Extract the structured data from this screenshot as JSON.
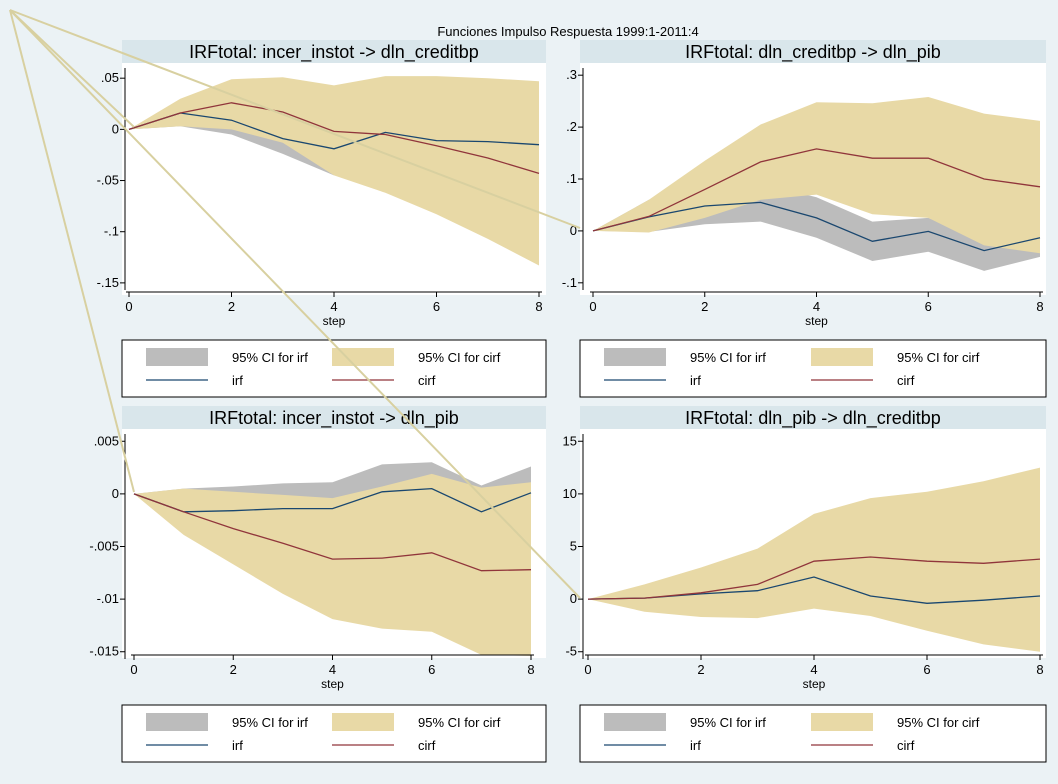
{
  "figure": {
    "title": "Funciones Impulso Respuesta 1999:1-2011:4"
  },
  "colors": {
    "background": "#ebf2f5",
    "plot_area": "#ffffff",
    "title_bar": "#d9e6eb",
    "ci_irf": "#bcbcbc",
    "ci_cirf": "#e8d9a6",
    "irf": "#1a476f",
    "cirf": "#90353b",
    "overlay_lines": "#d8d0a0"
  },
  "legend": {
    "ci_irf_label": "95% CI for irf",
    "ci_cirf_label": "95% CI for cirf",
    "irf_label": "irf",
    "cirf_label": "cirf"
  },
  "chart_data": [
    {
      "type": "line",
      "title": "IRFtotal: incer_instot -> dln_creditbp",
      "xlabel": "step",
      "ylabel": "",
      "grid": false,
      "legend_position": "bottom",
      "xlim": [
        0,
        8
      ],
      "ylim": [
        -0.155,
        0.058
      ],
      "x_ticks": [
        0,
        2,
        4,
        6,
        8
      ],
      "y_ticks": [
        0.05,
        0,
        -0.05,
        -0.1,
        -0.15
      ],
      "y_tick_labels": [
        ".05",
        "0",
        "-.05",
        "-.1",
        "-.15"
      ],
      "x": [
        0,
        1,
        2,
        3,
        4,
        5,
        6,
        7,
        8
      ],
      "irf": [
        0,
        0.016,
        0.009,
        -0.009,
        -0.019,
        -0.003,
        -0.011,
        -0.012,
        -0.015
      ],
      "cirf": [
        0,
        0.016,
        0.026,
        0.017,
        -0.002,
        -0.005,
        -0.016,
        -0.028,
        -0.043
      ],
      "ci_irf_low": [
        0,
        0.003,
        -0.005,
        -0.024,
        -0.045,
        -0.03,
        -0.04,
        -0.042,
        -0.045
      ],
      "ci_irf_high": [
        0,
        0.02,
        0.025,
        0.018,
        0.007,
        0.022,
        0.018,
        0.016,
        0.016
      ],
      "ci_cirf_low": [
        0,
        0.003,
        0.0,
        -0.013,
        -0.045,
        -0.062,
        -0.083,
        -0.107,
        -0.133
      ],
      "ci_cirf_high": [
        0,
        0.03,
        0.049,
        0.051,
        0.043,
        0.052,
        0.052,
        0.05,
        0.047
      ]
    },
    {
      "type": "line",
      "title": "IRFtotal: dln_creditbp -> dln_pib",
      "xlabel": "step",
      "ylabel": "",
      "grid": false,
      "legend_position": "bottom",
      "xlim": [
        0,
        8
      ],
      "ylim": [
        -0.11,
        0.31
      ],
      "x_ticks": [
        0,
        2,
        4,
        6,
        8
      ],
      "y_ticks": [
        0.3,
        0.2,
        0.1,
        0,
        -0.1
      ],
      "y_tick_labels": [
        ".3",
        ".2",
        ".1",
        "0",
        "-.1"
      ],
      "x": [
        0,
        1,
        2,
        3,
        4,
        5,
        6,
        7,
        8
      ],
      "irf": [
        0,
        0.027,
        0.048,
        0.055,
        0.025,
        -0.02,
        -0.001,
        -0.038,
        -0.013
      ],
      "cirf": [
        0,
        0.028,
        0.08,
        0.133,
        0.158,
        0.14,
        0.14,
        0.1,
        0.085
      ],
      "ci_irf_low": [
        0,
        -0.002,
        0.013,
        0.018,
        -0.013,
        -0.058,
        -0.04,
        -0.077,
        -0.05
      ],
      "ci_irf_high": [
        0,
        0.06,
        0.083,
        0.092,
        0.065,
        0.018,
        0.025,
        -0.015,
        0.0
      ],
      "ci_cirf_low": [
        0,
        -0.003,
        0.025,
        0.06,
        0.07,
        0.032,
        0.025,
        -0.028,
        -0.043
      ],
      "ci_cirf_high": [
        0,
        0.06,
        0.135,
        0.205,
        0.248,
        0.246,
        0.258,
        0.226,
        0.212
      ]
    },
    {
      "type": "line",
      "title": "IRFtotal: incer_instot -> dln_pib",
      "xlabel": "step",
      "ylabel": "",
      "grid": false,
      "legend_position": "bottom",
      "xlim": [
        0,
        8
      ],
      "ylim": [
        -0.0155,
        0.0055
      ],
      "x_ticks": [
        0,
        2,
        4,
        6,
        8
      ],
      "y_ticks": [
        0.005,
        0,
        -0.005,
        -0.01,
        -0.015
      ],
      "y_tick_labels": [
        ".005",
        "0",
        "-.005",
        "-.01",
        "-.015"
      ],
      "x": [
        0,
        1,
        2,
        3,
        4,
        5,
        6,
        7,
        8
      ],
      "irf": [
        0,
        -0.0017,
        -0.0016,
        -0.0014,
        -0.0014,
        0.0002,
        0.0005,
        -0.0017,
        0.0001
      ],
      "cirf": [
        0,
        -0.0017,
        -0.0033,
        -0.0047,
        -0.0062,
        -0.0061,
        -0.0056,
        -0.0073,
        -0.0072
      ],
      "ci_irf_low": [
        0,
        -0.0037,
        -0.0035,
        -0.0032,
        -0.0031,
        -0.0016,
        -0.0012,
        -0.0036,
        -0.0023
      ],
      "ci_irf_high": [
        0,
        0.0005,
        0.0007,
        0.001,
        0.0011,
        0.0028,
        0.003,
        0.0008,
        0.0026
      ],
      "ci_cirf_low": [
        0,
        -0.0039,
        -0.0067,
        -0.0095,
        -0.0119,
        -0.0128,
        -0.0131,
        -0.0153,
        -0.0154
      ],
      "ci_cirf_high": [
        0,
        0.0005,
        0.0002,
        -0.0001,
        -0.0004,
        0.0007,
        0.0019,
        0.0006,
        0.0011
      ]
    },
    {
      "type": "line",
      "title": "IRFtotal: dln_pib -> dln_creditbp",
      "xlabel": "step",
      "ylabel": "",
      "grid": false,
      "legend_position": "bottom",
      "xlim": [
        0,
        8
      ],
      "ylim": [
        -5.5,
        15.5
      ],
      "x_ticks": [
        0,
        2,
        4,
        6,
        8
      ],
      "y_ticks": [
        15,
        10,
        5,
        0,
        -5
      ],
      "y_tick_labels": [
        "15",
        "10",
        "5",
        "0",
        "-5"
      ],
      "x": [
        0,
        1,
        2,
        3,
        4,
        5,
        6,
        7,
        8
      ],
      "irf": [
        0,
        0.1,
        0.5,
        0.8,
        2.1,
        0.3,
        -0.4,
        -0.1,
        0.3
      ],
      "cirf": [
        0,
        0.1,
        0.6,
        1.4,
        3.6,
        4.0,
        3.6,
        3.4,
        3.8
      ],
      "ci_irf_low": [
        0,
        -0.3,
        -0.2,
        0.1,
        0.6,
        -0.4,
        -1.0,
        -0.7,
        -0.4
      ],
      "ci_irf_high": [
        0,
        0.5,
        1.0,
        1.5,
        3.0,
        1.0,
        0.2,
        0.5,
        1.0
      ],
      "ci_cirf_low": [
        0,
        -1.2,
        -1.7,
        -1.8,
        -0.9,
        -1.6,
        -3.0,
        -4.3,
        -5.0
      ],
      "ci_cirf_high": [
        0,
        1.4,
        3.0,
        4.8,
        8.1,
        9.6,
        10.2,
        11.2,
        12.5
      ]
    }
  ]
}
